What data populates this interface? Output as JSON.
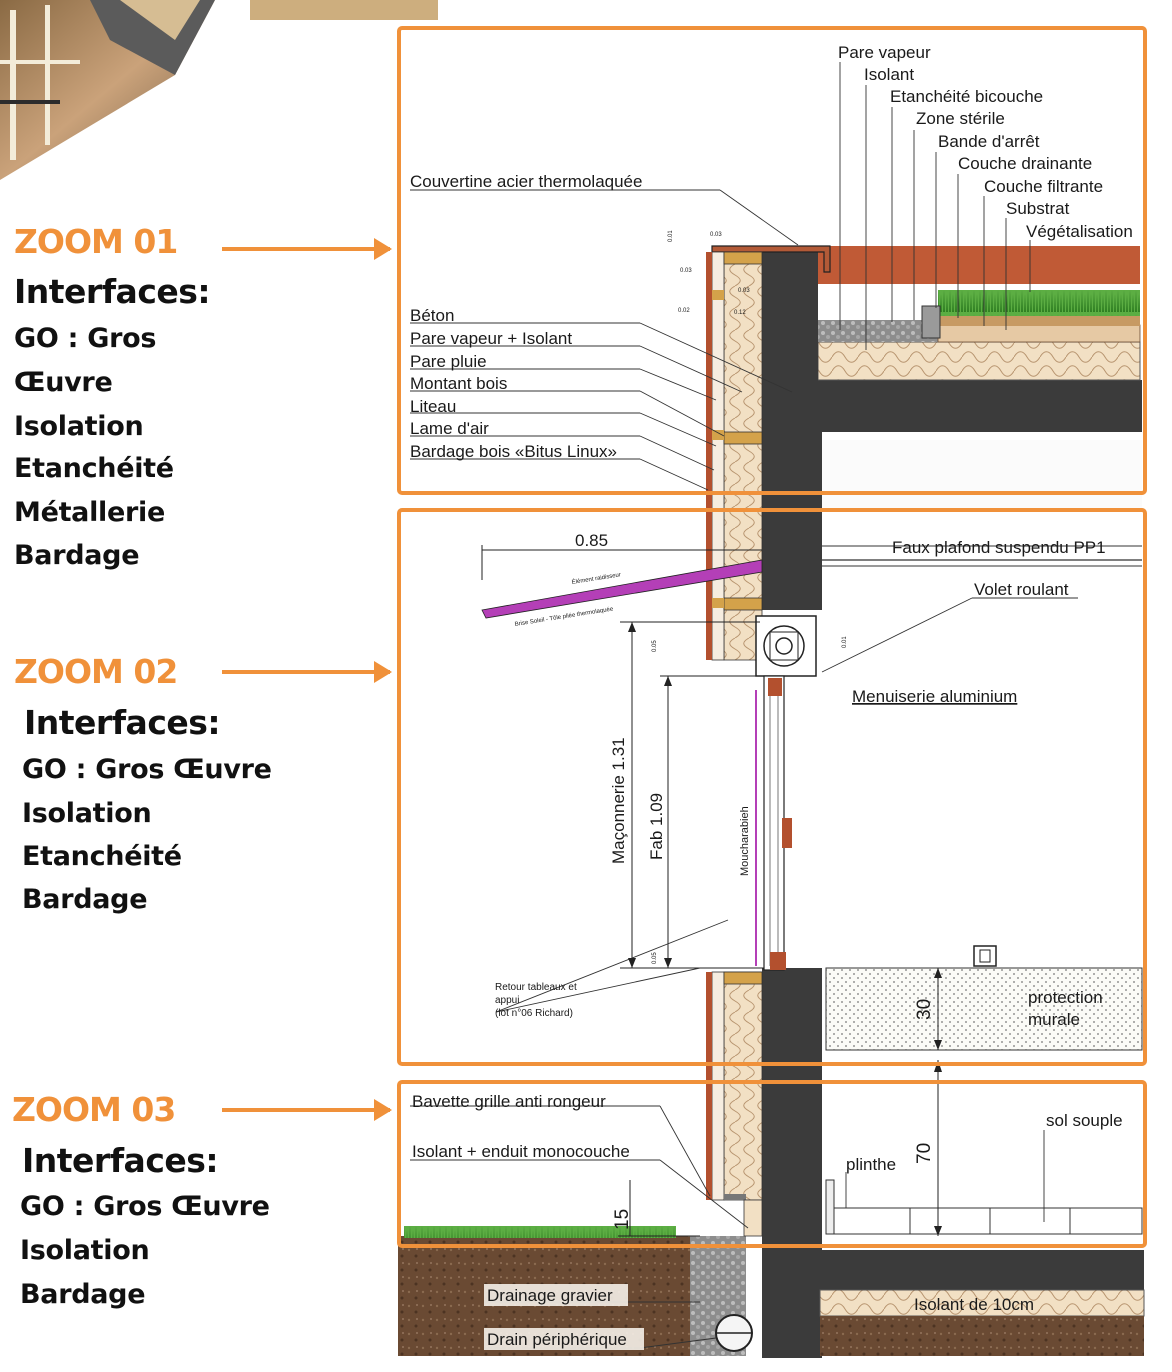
{
  "colors": {
    "accent": "#f0913a",
    "concrete": "#3a3a3a",
    "insulation": "#efd9b8",
    "wood": "#b3502e",
    "grass": "#3f9a2e",
    "brise_soleil": "#b43fb7",
    "soil": "#6b4a34",
    "line": "#1a1a1a"
  },
  "zooms": [
    {
      "title": "ZOOM 01",
      "heading": "Interfaces:",
      "items": [
        "GO : Gros",
        "Œuvre",
        "Isolation",
        "Etanchéité",
        "Métallerie",
        "Bardage"
      ]
    },
    {
      "title": "ZOOM 02",
      "heading": "Interfaces:",
      "items": [
        "GO : Gros Œuvre",
        "Isolation",
        "Etanchéité",
        "Bardage"
      ]
    },
    {
      "title": "ZOOM 03",
      "heading": "Interfaces:",
      "items": [
        "GO : Gros Œuvre",
        "Isolation",
        "Bardage"
      ]
    }
  ],
  "labels": {
    "roof": [
      "Pare vapeur",
      "Isolant",
      "Etanchéité bicouche",
      "Zone stérile",
      "Bande d'arrêt",
      "Couche drainante",
      "Couche filtrante",
      "Substrat",
      "Végétalisation"
    ],
    "couvertine": "Couvertine acier thermolaquée",
    "wall": [
      "Béton",
      "Pare vapeur + Isolant",
      "Pare pluie",
      "Montant bois",
      "Liteau",
      "Lame d'air",
      "Bardage bois «Bitus Linux»"
    ],
    "dims_small": [
      "0.01",
      "0.03",
      "0.03",
      "0.02",
      "0.03",
      "0.12"
    ],
    "overhang": "0.85",
    "element_raidisseur": "Élément raidisseur",
    "brise_soleil": "Brise Soleil - Tôle pliée thermolaquée",
    "faux_plafond": "Faux plafond suspendu  PP1",
    "volet": "Volet roulant",
    "menuiserie": "Menuiserie aluminium",
    "maconnerie": "Maçonnerie 1.31",
    "fab": "Fab 1.09",
    "moucharabieh": "Moucharabieh",
    "dim_005_a": "0.05",
    "dim_001": "0.01",
    "dim_005_b": "0.05",
    "retour": [
      "Retour tableaux et",
      "appui",
      "(lot n°06 Richard)"
    ],
    "dim_30": "30",
    "protection": [
      "protection",
      "murale"
    ],
    "bavette": "Bavette grille anti rongeur",
    "isolant_enduit": "Isolant + enduit monocouche",
    "dim_15": "15",
    "plinthe": "plinthe",
    "dim_70": "70",
    "sol_souple": "sol souple",
    "drainage": "Drainage gravier",
    "drain": "Drain périphérique",
    "isolant_10": "Isolant de 10cm"
  }
}
